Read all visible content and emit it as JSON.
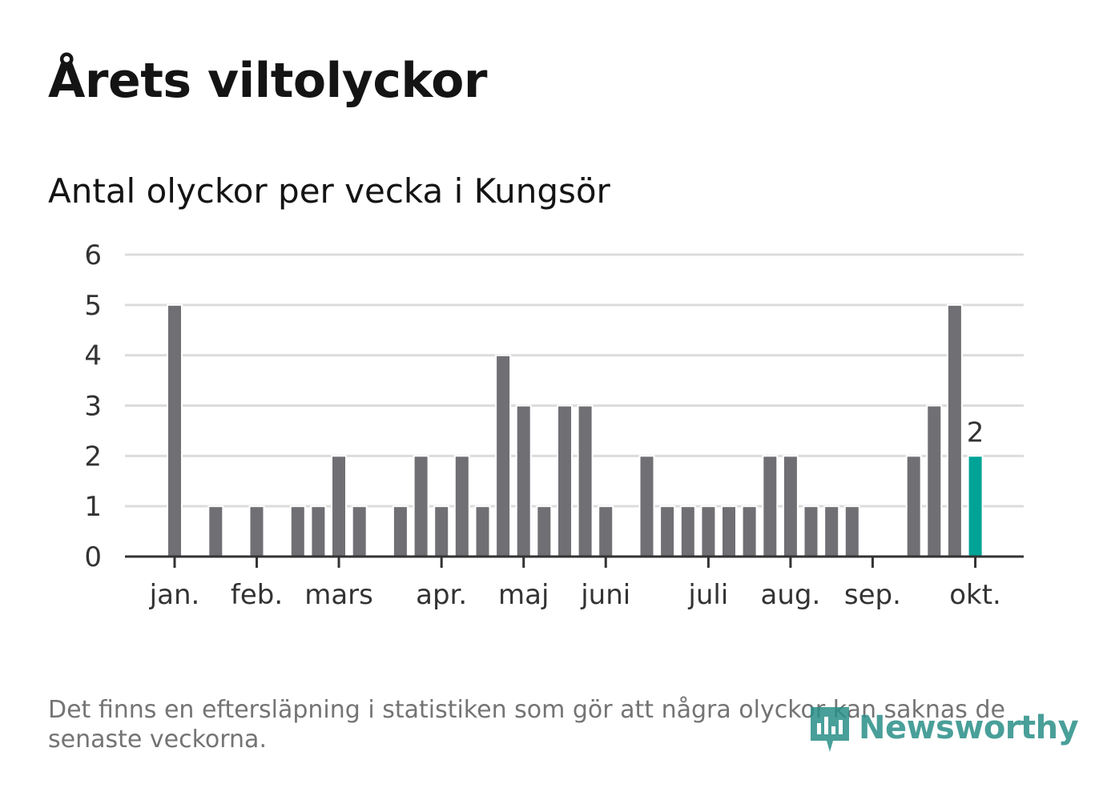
{
  "chart_data": {
    "type": "bar",
    "title": "Årets viltolyckor",
    "subtitle": "Antal olyckor per vecka i Kungsör",
    "xlabel": "",
    "ylabel": "",
    "ylim": [
      0,
      6
    ],
    "yticks": [
      "0",
      "1",
      "2",
      "3",
      "4",
      "5",
      "6"
    ],
    "grid": true,
    "month_ticks": [
      {
        "label": "jan.",
        "week": 1
      },
      {
        "label": "feb.",
        "week": 5
      },
      {
        "label": "mars",
        "week": 9
      },
      {
        "label": "apr.",
        "week": 14
      },
      {
        "label": "maj",
        "week": 18
      },
      {
        "label": "juni",
        "week": 22
      },
      {
        "label": "juli",
        "week": 27
      },
      {
        "label": "aug.",
        "week": 31
      },
      {
        "label": "sep.",
        "week": 35
      },
      {
        "label": "okt.",
        "week": 40
      }
    ],
    "weeks": [
      1,
      2,
      3,
      4,
      5,
      6,
      7,
      8,
      9,
      10,
      11,
      12,
      13,
      14,
      15,
      16,
      17,
      18,
      19,
      20,
      21,
      22,
      23,
      24,
      25,
      26,
      27,
      28,
      29,
      30,
      31,
      32,
      33,
      34,
      35,
      36,
      37,
      38,
      39,
      40
    ],
    "values": [
      5,
      0,
      1,
      0,
      1,
      0,
      1,
      1,
      2,
      1,
      0,
      1,
      2,
      1,
      2,
      1,
      4,
      3,
      1,
      3,
      3,
      1,
      0,
      2,
      1,
      1,
      1,
      1,
      1,
      2,
      2,
      1,
      1,
      1,
      0,
      0,
      2,
      3,
      5,
      2
    ],
    "highlight": {
      "week": 40,
      "value": 2,
      "label": "2"
    },
    "colors": {
      "bar": "#706f74",
      "highlight": "#00a396",
      "grid": "#dcdcdc",
      "axis": "#333333"
    }
  },
  "footer": {
    "note": "Det finns en eftersläpning i statistiken som gör att några olyckor kan saknas de senaste veckorna.",
    "logo_text": "Newsworthy"
  }
}
